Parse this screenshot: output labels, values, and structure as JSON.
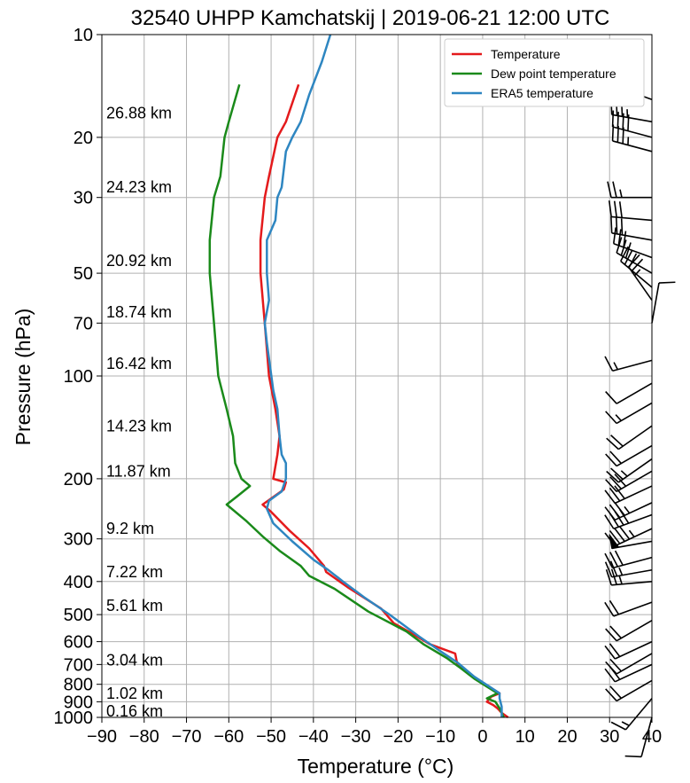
{
  "chart_data": {
    "type": "line",
    "title": "32540 UHPP Kamchatskij | 2019-06-21 12:00 UTC",
    "xlabel": "Temperature (°C)",
    "ylabel": "Pressure (hPa)",
    "xlim": [
      -90,
      40
    ],
    "ylim": [
      1000,
      10
    ],
    "y_scale": "log",
    "grid": true,
    "legend_position": "top-right",
    "x_ticks": [
      "−90",
      "−80",
      "−70",
      "−60",
      "−50",
      "−40",
      "−30",
      "−20",
      "−10",
      "0",
      "10",
      "20",
      "30",
      "40"
    ],
    "y_ticks": [
      {
        "value": 10,
        "label": "10"
      },
      {
        "value": 20,
        "label": "20"
      },
      {
        "value": 30,
        "label": "30"
      },
      {
        "value": 50,
        "label": "50"
      },
      {
        "value": 70,
        "label": "70"
      },
      {
        "value": 100,
        "label": "100"
      },
      {
        "value": 200,
        "label": "200"
      },
      {
        "value": 300,
        "label": "300"
      },
      {
        "value": 400,
        "label": "400"
      },
      {
        "value": 500,
        "label": "500"
      },
      {
        "value": 600,
        "label": "600"
      },
      {
        "value": 700,
        "label": "700"
      },
      {
        "value": 800,
        "label": "800"
      },
      {
        "value": 900,
        "label": "900"
      },
      {
        "value": 1000,
        "label": "1000"
      }
    ],
    "altitude_labels": [
      {
        "pressure": 17,
        "label": "26.88 km"
      },
      {
        "pressure": 28,
        "label": "24.23 km"
      },
      {
        "pressure": 46,
        "label": "20.92 km"
      },
      {
        "pressure": 65,
        "label": "18.74 km"
      },
      {
        "pressure": 92,
        "label": "16.42 km"
      },
      {
        "pressure": 140,
        "label": "14.23 km"
      },
      {
        "pressure": 190,
        "label": "11.87 km"
      },
      {
        "pressure": 280,
        "label": "9.2 km"
      },
      {
        "pressure": 375,
        "label": "7.22 km"
      },
      {
        "pressure": 470,
        "label": "5.61 km"
      },
      {
        "pressure": 680,
        "label": "3.04 km"
      },
      {
        "pressure": 850,
        "label": "1.02 km"
      },
      {
        "pressure": 960,
        "label": "0.16 km"
      }
    ],
    "series": [
      {
        "name": "Temperature",
        "color": "#e41a1c",
        "points": [
          [
            -43.5,
            14
          ],
          [
            -46.5,
            18
          ],
          [
            -48.5,
            20
          ],
          [
            -50.5,
            26
          ],
          [
            -51.5,
            30
          ],
          [
            -52.5,
            40
          ],
          [
            -52.5,
            50
          ],
          [
            -51.5,
            70
          ],
          [
            -50.5,
            100
          ],
          [
            -49,
            125
          ],
          [
            -48,
            150
          ],
          [
            -48.5,
            170
          ],
          [
            -49.5,
            200
          ],
          [
            -46.5,
            205
          ],
          [
            -47,
            215
          ],
          [
            -52,
            238
          ],
          [
            -50,
            250
          ],
          [
            -45.5,
            285
          ],
          [
            -41,
            320
          ],
          [
            -37.5,
            360
          ],
          [
            -37,
            375
          ],
          [
            -32,
            415
          ],
          [
            -24,
            480
          ],
          [
            -21,
            530
          ],
          [
            -16.5,
            570
          ],
          [
            -12.5,
            610
          ],
          [
            -6.5,
            650
          ],
          [
            -6,
            700
          ],
          [
            -3,
            750
          ],
          [
            4,
            850
          ],
          [
            2,
            870
          ],
          [
            1,
            900
          ],
          [
            2.5,
            920
          ],
          [
            3.5,
            940
          ],
          [
            4.5,
            970
          ],
          [
            6,
            1000
          ]
        ]
      },
      {
        "name": "Dew point temperature",
        "color": "#1a8a1a",
        "points": [
          [
            -57.5,
            14
          ],
          [
            -60,
            18
          ],
          [
            -61,
            20
          ],
          [
            -62,
            26
          ],
          [
            -63.5,
            30
          ],
          [
            -64.5,
            40
          ],
          [
            -64.5,
            50
          ],
          [
            -63.5,
            70
          ],
          [
            -62.5,
            100
          ],
          [
            -60.5,
            125
          ],
          [
            -59,
            150
          ],
          [
            -58.5,
            180
          ],
          [
            -57,
            200
          ],
          [
            -55,
            210
          ],
          [
            -58,
            225
          ],
          [
            -60.5,
            238
          ],
          [
            -56,
            265
          ],
          [
            -52,
            295
          ],
          [
            -48,
            325
          ],
          [
            -43,
            360
          ],
          [
            -41,
            385
          ],
          [
            -35,
            420
          ],
          [
            -27,
            490
          ],
          [
            -18,
            560
          ],
          [
            -14,
            610
          ],
          [
            -8.5,
            670
          ],
          [
            -5,
            720
          ],
          [
            -2,
            770
          ],
          [
            3.5,
            850
          ],
          [
            1,
            880
          ],
          [
            3,
            900
          ],
          [
            4,
            940
          ],
          [
            5,
            1000
          ]
        ]
      },
      {
        "name": "ERA5 temperature",
        "color": "#2e86c1",
        "points": [
          [
            -36,
            10
          ],
          [
            -38,
            12
          ],
          [
            -41,
            15
          ],
          [
            -43,
            18
          ],
          [
            -45,
            20
          ],
          [
            -46.5,
            22
          ],
          [
            -47.5,
            28
          ],
          [
            -48.5,
            30
          ],
          [
            -49,
            35
          ],
          [
            -51,
            40
          ],
          [
            -51,
            50
          ],
          [
            -50.5,
            60
          ],
          [
            -51.5,
            70
          ],
          [
            -51,
            80
          ],
          [
            -49.5,
            110
          ],
          [
            -48.5,
            125
          ],
          [
            -48,
            150
          ],
          [
            -47.5,
            170
          ],
          [
            -46.5,
            180
          ],
          [
            -46.5,
            200
          ],
          [
            -47.5,
            218
          ],
          [
            -50.5,
            232
          ],
          [
            -51,
            245
          ],
          [
            -49.5,
            270
          ],
          [
            -45,
            305
          ],
          [
            -40,
            345
          ],
          [
            -36.5,
            370
          ],
          [
            -33,
            400
          ],
          [
            -28,
            445
          ],
          [
            -22,
            500
          ],
          [
            -15,
            580
          ],
          [
            -10,
            640
          ],
          [
            -6,
            690
          ],
          [
            -2,
            760
          ],
          [
            4,
            850
          ],
          [
            4,
            880
          ],
          [
            4.5,
            930
          ],
          [
            4.5,
            1000
          ]
        ]
      }
    ],
    "wind_barbs": [
      {
        "pressure": 15.5,
        "direction_deg": 290,
        "speed_kt": 35
      },
      {
        "pressure": 18,
        "direction_deg": 280,
        "speed_kt": 35
      },
      {
        "pressure": 20,
        "direction_deg": 285,
        "speed_kt": 40
      },
      {
        "pressure": 22,
        "direction_deg": 285,
        "speed_kt": 35
      },
      {
        "pressure": 30,
        "direction_deg": 270,
        "speed_kt": 25
      },
      {
        "pressure": 35,
        "direction_deg": 275,
        "speed_kt": 30
      },
      {
        "pressure": 40,
        "direction_deg": 280,
        "speed_kt": 30
      },
      {
        "pressure": 45,
        "direction_deg": 290,
        "speed_kt": 30
      },
      {
        "pressure": 50,
        "direction_deg": 300,
        "speed_kt": 30
      },
      {
        "pressure": 55,
        "direction_deg": 310,
        "speed_kt": 30
      },
      {
        "pressure": 60,
        "direction_deg": 325,
        "speed_kt": 25
      },
      {
        "pressure": 70,
        "direction_deg": 10,
        "speed_kt": 10
      },
      {
        "pressure": 90,
        "direction_deg": 255,
        "speed_kt": 15
      },
      {
        "pressure": 105,
        "direction_deg": 240,
        "speed_kt": 10
      },
      {
        "pressure": 120,
        "direction_deg": 240,
        "speed_kt": 15
      },
      {
        "pressure": 140,
        "direction_deg": 235,
        "speed_kt": 20
      },
      {
        "pressure": 160,
        "direction_deg": 240,
        "speed_kt": 20
      },
      {
        "pressure": 175,
        "direction_deg": 235,
        "speed_kt": 25
      },
      {
        "pressure": 190,
        "direction_deg": 240,
        "speed_kt": 30
      },
      {
        "pressure": 210,
        "direction_deg": 245,
        "speed_kt": 30
      },
      {
        "pressure": 235,
        "direction_deg": 245,
        "speed_kt": 35
      },
      {
        "pressure": 255,
        "direction_deg": 250,
        "speed_kt": 40
      },
      {
        "pressure": 280,
        "direction_deg": 245,
        "speed_kt": 45
      },
      {
        "pressure": 305,
        "direction_deg": 260,
        "speed_kt": 50
      },
      {
        "pressure": 340,
        "direction_deg": 255,
        "speed_kt": 30
      },
      {
        "pressure": 370,
        "direction_deg": 260,
        "speed_kt": 25
      },
      {
        "pressure": 400,
        "direction_deg": 265,
        "speed_kt": 25
      },
      {
        "pressure": 460,
        "direction_deg": 250,
        "speed_kt": 20
      },
      {
        "pressure": 520,
        "direction_deg": 240,
        "speed_kt": 20
      },
      {
        "pressure": 600,
        "direction_deg": 245,
        "speed_kt": 20
      },
      {
        "pressure": 650,
        "direction_deg": 240,
        "speed_kt": 20
      },
      {
        "pressure": 700,
        "direction_deg": 245,
        "speed_kt": 20
      },
      {
        "pressure": 780,
        "direction_deg": 240,
        "speed_kt": 20
      },
      {
        "pressure": 880,
        "direction_deg": 220,
        "speed_kt": 15
      },
      {
        "pressure": 1000,
        "direction_deg": 195,
        "speed_kt": 10
      }
    ]
  }
}
